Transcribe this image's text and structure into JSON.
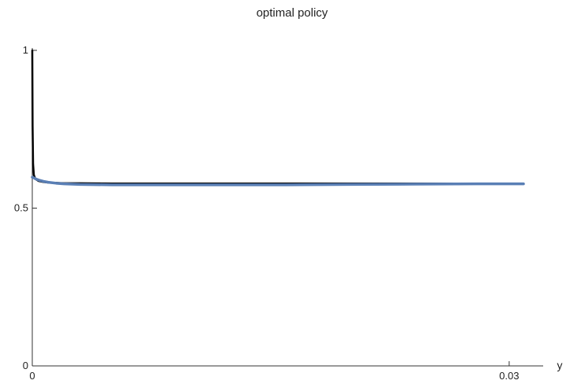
{
  "chart_data": {
    "type": "line",
    "title": "optimal policy",
    "xlabel": "y",
    "ylabel": "",
    "xlim": [
      0,
      0.0309
    ],
    "ylim": [
      0,
      1
    ],
    "x_ticks": [
      {
        "value": 0,
        "label": "0"
      },
      {
        "value": 0.03,
        "label": "0.03"
      }
    ],
    "y_ticks": [
      {
        "value": 0,
        "label": "0"
      },
      {
        "value": 0.5,
        "label": "0.5"
      },
      {
        "value": 1,
        "label": "1"
      }
    ],
    "grid": false,
    "series": [
      {
        "color": "#000000",
        "x": [
          0,
          2e-05,
          5e-05,
          0.0001,
          0.0002,
          0.0004,
          0.0007,
          0.001,
          0.0015,
          0.002,
          0.003,
          0.005,
          0.008,
          0.012,
          0.016,
          0.02,
          0.024,
          0.028,
          0.0309
        ],
        "values": [
          1.0,
          0.76,
          0.64,
          0.605,
          0.592,
          0.586,
          0.583,
          0.581,
          0.58,
          0.579,
          0.579,
          0.578,
          0.578,
          0.578,
          0.578,
          0.578,
          0.578,
          0.578,
          0.578
        ]
      },
      {
        "color": "#5a7fb5",
        "x": [
          0,
          0.0001,
          0.0002,
          0.0004,
          0.0007,
          0.001,
          0.0015,
          0.002,
          0.003,
          0.005,
          0.008,
          0.012,
          0.016,
          0.02,
          0.024,
          0.028,
          0.0309
        ],
        "values": [
          0.598,
          0.596,
          0.593,
          0.589,
          0.585,
          0.582,
          0.579,
          0.577,
          0.575,
          0.574,
          0.574,
          0.574,
          0.574,
          0.575,
          0.576,
          0.577,
          0.577
        ]
      }
    ]
  }
}
